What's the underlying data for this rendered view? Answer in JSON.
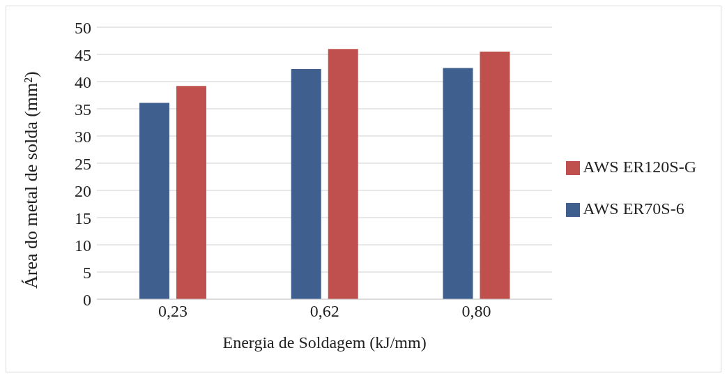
{
  "chart_data": {
    "type": "bar",
    "xlabel": "Energia de Soldagem (kJ/mm)",
    "ylabel": "Área do metal de solda (mm²)",
    "categories": [
      "0,23",
      "0,62",
      "0,80"
    ],
    "series": [
      {
        "name": "AWS ER70S-6",
        "color": "#3f5f8f",
        "values": [
          36.1,
          42.3,
          42.5
        ]
      },
      {
        "name": "AWS ER120S-G",
        "color": "#c0504d",
        "values": [
          39.2,
          46.0,
          45.5
        ]
      }
    ],
    "ylim": [
      0,
      50
    ],
    "yticks": [
      0,
      5,
      10,
      15,
      20,
      25,
      30,
      35,
      40,
      45,
      50
    ],
    "grid": "y",
    "legend": "right"
  }
}
